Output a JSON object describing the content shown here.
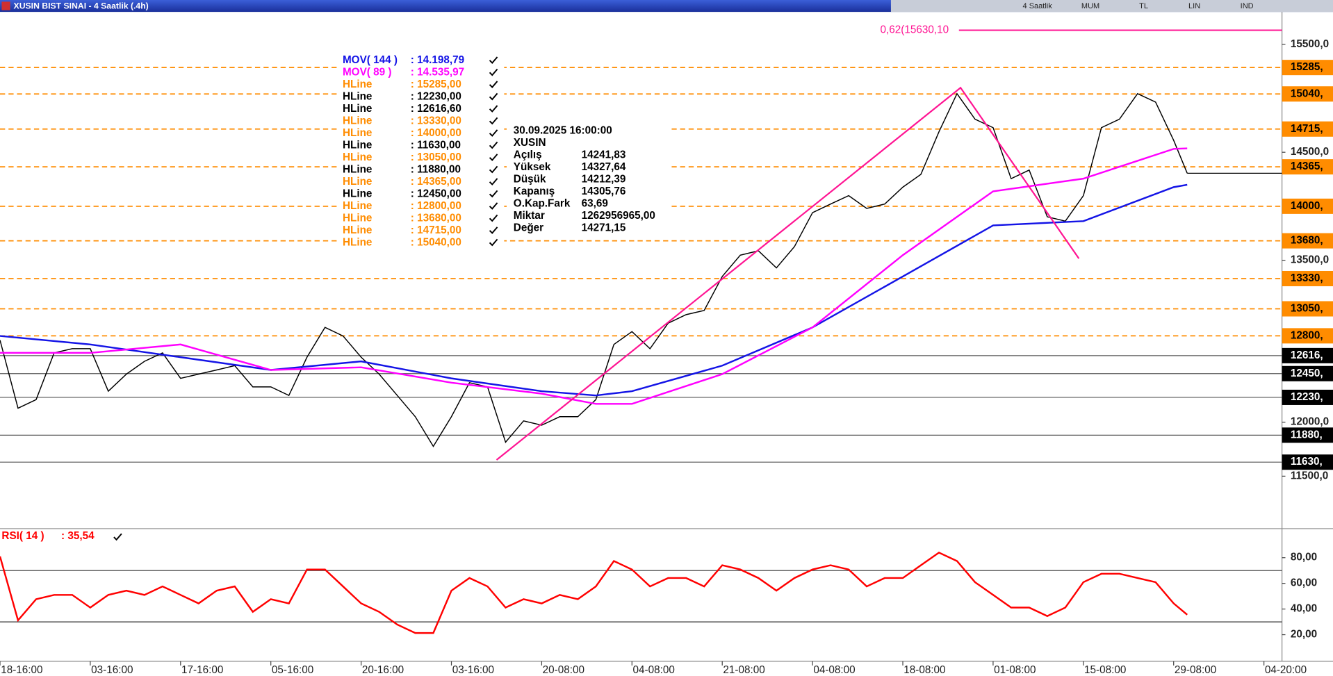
{
  "window": {
    "title": "XUSIN BIST SINAI - 4 Saatlik (.4h)",
    "toolbar": [
      "4 Saatlik",
      "MUM",
      "TL",
      "LIN",
      "IND"
    ]
  },
  "legend": [
    {
      "name": "MOV( 144 )",
      "value_label": ": 14.198,79",
      "color": "#1414e6"
    },
    {
      "name": "MOV( 89 )",
      "value_label": ": 14.535,97",
      "color": "#ff00ff"
    },
    {
      "name": "HLine",
      "value_label": ": 15285,00",
      "color": "#ff8c00"
    },
    {
      "name": "HLine",
      "value_label": ": 12230,00",
      "color": "#000000"
    },
    {
      "name": "HLine",
      "value_label": ": 12616,60",
      "color": "#000000"
    },
    {
      "name": "HLine",
      "value_label": ": 13330,00",
      "color": "#ff8c00"
    },
    {
      "name": "HLine",
      "value_label": ": 14000,00",
      "color": "#ff8c00"
    },
    {
      "name": "HLine",
      "value_label": ": 11630,00",
      "color": "#000000"
    },
    {
      "name": "HLine",
      "value_label": ": 13050,00",
      "color": "#ff8c00"
    },
    {
      "name": "HLine",
      "value_label": ": 11880,00",
      "color": "#000000"
    },
    {
      "name": "HLine",
      "value_label": ": 14365,00",
      "color": "#ff8c00"
    },
    {
      "name": "HLine",
      "value_label": ": 12450,00",
      "color": "#000000"
    },
    {
      "name": "HLine",
      "value_label": ": 12800,00",
      "color": "#ff8c00"
    },
    {
      "name": "HLine",
      "value_label": ": 13680,00",
      "color": "#ff8c00"
    },
    {
      "name": "HLine",
      "value_label": ": 14715,00",
      "color": "#ff8c00"
    },
    {
      "name": "HLine",
      "value_label": ": 15040,00",
      "color": "#ff8c00"
    }
  ],
  "info": {
    "datetime": "30.09.2025  16:00:00",
    "symbol": "XUSIN",
    "rows": [
      [
        "Açılış",
        "14241,83"
      ],
      [
        "Yüksek",
        "14327,64"
      ],
      [
        "Düşük",
        "14212,39"
      ],
      [
        "Kapanış",
        "14305,76"
      ],
      [
        "O.Kap.Fark",
        "63,69"
      ],
      [
        "Miktar",
        "1262956965,00"
      ],
      [
        "Değer",
        "14271,15"
      ]
    ]
  },
  "chart_data": [
    {
      "type": "line",
      "xlim": [
        0,
        284
      ],
      "ylim": [
        11030,
        15800
      ],
      "yticks": [
        {
          "value": 11500,
          "label": "11500,0"
        },
        {
          "value": 12000,
          "label": "12000,0"
        },
        {
          "value": 13500,
          "label": "13500,0"
        },
        {
          "value": 14500,
          "label": "14500,0"
        },
        {
          "value": 15500,
          "label": "15500,0"
        }
      ],
      "x": [
        0,
        4,
        8,
        12,
        16,
        20,
        24,
        28,
        32,
        36,
        40,
        44,
        48,
        52,
        56,
        60,
        64,
        68,
        72,
        76,
        80,
        84,
        88,
        92,
        96,
        100,
        104,
        108,
        112,
        116,
        120,
        124,
        128,
        132,
        136,
        140,
        144,
        148,
        152,
        156,
        160,
        164,
        168,
        172,
        176,
        180,
        184,
        188,
        192,
        196,
        200,
        204,
        208,
        212,
        216,
        220,
        224,
        228,
        232,
        236,
        240,
        244,
        248,
        252,
        256,
        260,
        263
      ],
      "series": [
        {
          "name": "XUSIN",
          "color": "#000000",
          "values": [
            12760,
            12130,
            12209,
            12642,
            12681,
            12681,
            12287,
            12445,
            12563,
            12642,
            12406,
            12445,
            12484,
            12524,
            12327,
            12327,
            12248,
            12602,
            12878,
            12799,
            12602,
            12445,
            12248,
            12051,
            11776,
            12051,
            12366,
            12327,
            11815,
            12012,
            11972,
            12051,
            12051,
            12209,
            12720,
            12839,
            12681,
            12917,
            12996,
            13035,
            13350,
            13547,
            13587,
            13429,
            13626,
            13941,
            14020,
            14098,
            13980,
            14020,
            14177,
            14295,
            14689,
            15043,
            14807,
            14728,
            14256,
            14335,
            13902,
            13862,
            14098,
            14728,
            14807,
            15043,
            14965,
            14610,
            14305.76
          ]
        },
        {
          "name": "MOV( 144 )",
          "color": "#1414e6",
          "x": [
            0,
            20,
            40,
            60,
            80,
            100,
            120,
            132,
            140,
            160,
            180,
            200,
            220,
            240,
            260,
            263
          ],
          "values": [
            12799,
            12720,
            12602,
            12484,
            12563,
            12406,
            12287,
            12248,
            12287,
            12524,
            12878,
            13350,
            13823,
            13862,
            14177,
            14198.79
          ]
        },
        {
          "name": "MOV( 89 )",
          "color": "#ff00ff",
          "x": [
            0,
            20,
            40,
            60,
            80,
            100,
            120,
            132,
            140,
            160,
            180,
            200,
            220,
            240,
            260,
            263
          ],
          "values": [
            12642,
            12642,
            12720,
            12484,
            12508,
            12366,
            12264,
            12170,
            12170,
            12445,
            12878,
            13547,
            14138,
            14256,
            14531,
            14535.97
          ]
        }
      ],
      "trendline": {
        "color": "#ff1493",
        "x": [
          110,
          212.8,
          239
        ],
        "values": [
          11650,
          15098,
          13516
        ]
      },
      "fib": {
        "value": 15630.1,
        "label": "0,62(15630,10",
        "color": "#ff1493"
      },
      "hlines": [
        {
          "value": 15285,
          "label": "15285,",
          "color": "#ff8c00"
        },
        {
          "value": 15040,
          "label": "15040,",
          "color": "#ff8c00"
        },
        {
          "value": 14715,
          "label": "14715,",
          "color": "#ff8c00"
        },
        {
          "value": 14365,
          "label": "14365,",
          "color": "#ff8c00"
        },
        {
          "value": 14000,
          "label": "14000,",
          "color": "#ff8c00"
        },
        {
          "value": 13680,
          "label": "13680,",
          "color": "#ff8c00"
        },
        {
          "value": 13330,
          "label": "13330,",
          "color": "#ff8c00"
        },
        {
          "value": 13050,
          "label": "13050,",
          "color": "#ff8c00"
        },
        {
          "value": 12800,
          "label": "12800,",
          "color": "#ff8c00"
        },
        {
          "value": 12616.6,
          "label": "12616,",
          "color": "#000000"
        },
        {
          "value": 12450,
          "label": "12450,",
          "color": "#000000"
        },
        {
          "value": 12230,
          "label": "12230,",
          "color": "#000000"
        },
        {
          "value": 11880,
          "label": "11880,",
          "color": "#000000"
        },
        {
          "value": 11630,
          "label": "11630,",
          "color": "#000000"
        }
      ]
    },
    {
      "type": "line",
      "title": "RSI( 14 )",
      "value_label": ": 35,54",
      "xlim": [
        0,
        284
      ],
      "ylim": [
        0,
        100
      ],
      "yticks": [
        {
          "value": 20,
          "label": "20,00"
        },
        {
          "value": 40,
          "label": "40,00"
        },
        {
          "value": 60,
          "label": "60,00"
        },
        {
          "value": 80,
          "label": "80,00"
        }
      ],
      "levels": [
        70,
        30
      ],
      "xticks": [
        {
          "value": 0,
          "label": "18-16:00"
        },
        {
          "value": 20,
          "label": "03-16:00"
        },
        {
          "value": 40,
          "label": "17-16:00"
        },
        {
          "value": 60,
          "label": "05-16:00"
        },
        {
          "value": 80,
          "label": "20-16:00"
        },
        {
          "value": 100,
          "label": "03-16:00"
        },
        {
          "value": 120,
          "label": "20-08:00"
        },
        {
          "value": 140,
          "label": "04-08:00"
        },
        {
          "value": 160,
          "label": "21-08:00"
        },
        {
          "value": 180,
          "label": "04-08:00"
        },
        {
          "value": 200,
          "label": "18-08:00"
        },
        {
          "value": 220,
          "label": "01-08:00"
        },
        {
          "value": 240,
          "label": "15-08:00"
        },
        {
          "value": 260,
          "label": "29-08:00"
        },
        {
          "value": 280,
          "label": "04-20:00"
        }
      ],
      "x": [
        0,
        4,
        8,
        12,
        16,
        20,
        24,
        28,
        32,
        36,
        40,
        44,
        48,
        52,
        56,
        60,
        64,
        68,
        72,
        76,
        80,
        84,
        88,
        92,
        96,
        100,
        104,
        108,
        112,
        116,
        120,
        124,
        128,
        132,
        136,
        140,
        144,
        148,
        152,
        156,
        160,
        164,
        168,
        172,
        176,
        180,
        184,
        188,
        192,
        196,
        200,
        204,
        208,
        212,
        216,
        220,
        224,
        228,
        232,
        236,
        240,
        244,
        248,
        252,
        256,
        260,
        263
      ],
      "series": [
        {
          "name": "RSI",
          "color": "#ff0000",
          "values": [
            81,
            31.2,
            47.7,
            51,
            51,
            41.1,
            51,
            54.3,
            51,
            57.6,
            51,
            44.4,
            54.3,
            57.6,
            37.8,
            47.7,
            44.4,
            70.8,
            70.8,
            57.6,
            44.4,
            37.8,
            27.9,
            21.3,
            21.3,
            54.3,
            64.2,
            57.6,
            41.1,
            47.7,
            44.4,
            51,
            47.7,
            57.6,
            77.4,
            70.8,
            57.6,
            64.2,
            64.2,
            57.6,
            74.1,
            70.8,
            64.2,
            54.3,
            64.2,
            70.8,
            74.1,
            70.8,
            57.6,
            64.2,
            64.2,
            74.1,
            84,
            77.4,
            60.9,
            51,
            41.1,
            41.1,
            34.5,
            41.1,
            60.9,
            67.5,
            67.5,
            64.2,
            60.9,
            44.4,
            35.54
          ]
        }
      ]
    }
  ]
}
